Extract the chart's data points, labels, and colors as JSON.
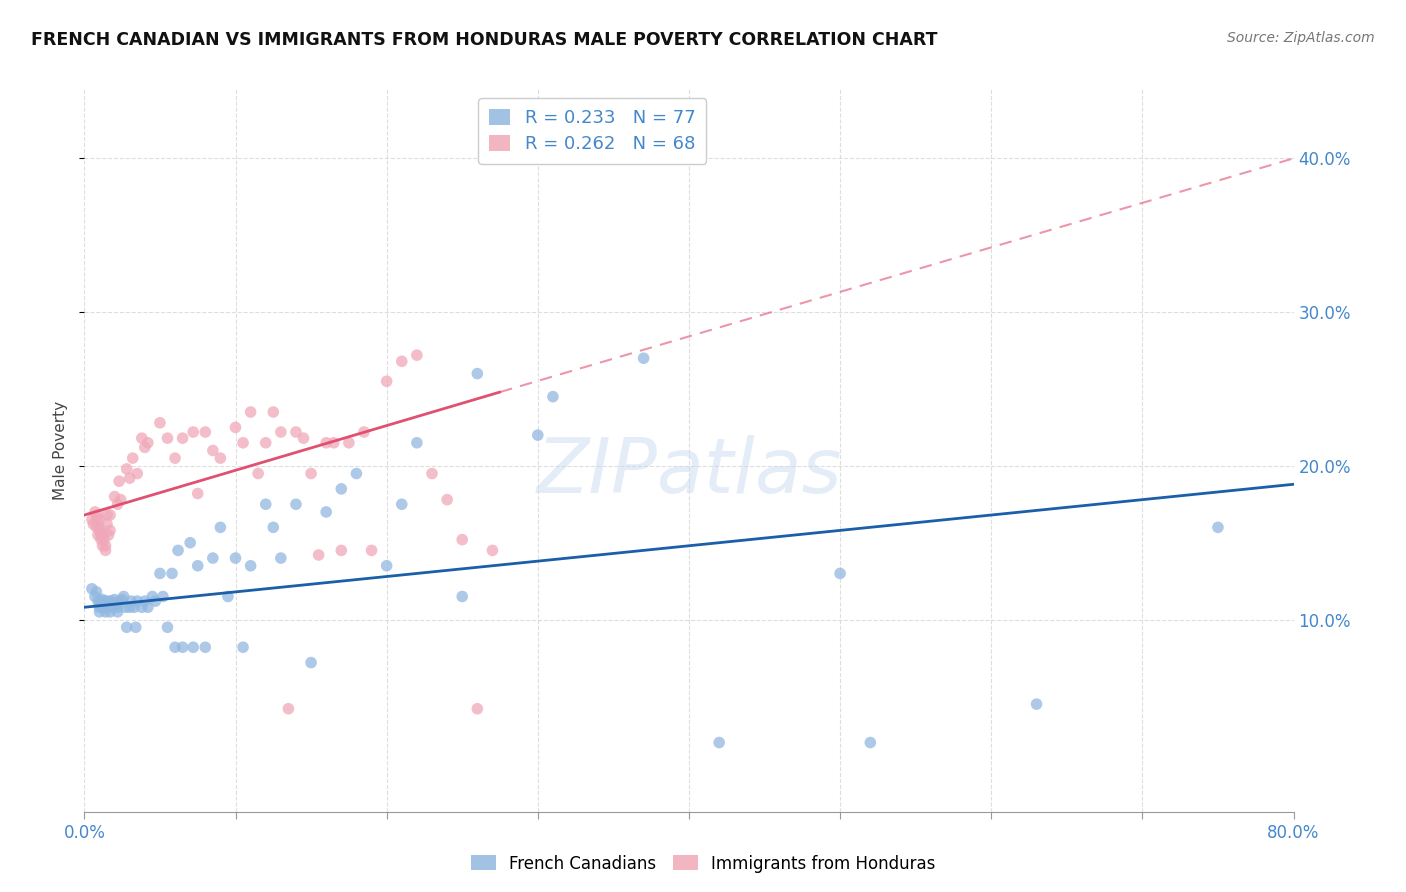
{
  "title": "FRENCH CANADIAN VS IMMIGRANTS FROM HONDURAS MALE POVERTY CORRELATION CHART",
  "source": "Source: ZipAtlas.com",
  "ylabel": "Male Poverty",
  "right_yticks": [
    "40.0%",
    "30.0%",
    "20.0%",
    "10.0%"
  ],
  "right_ytick_vals": [
    0.4,
    0.3,
    0.2,
    0.1
  ],
  "xlim": [
    0.0,
    0.8
  ],
  "ylim": [
    -0.025,
    0.445
  ],
  "legend_line1": "R = 0.233   N = 77",
  "legend_line2": "R = 0.262   N = 68",
  "series1_color": "#92b8e0",
  "series2_color": "#f0a8b8",
  "trendline1_color": "#1a5fa8",
  "trendline2_color": "#e05070",
  "watermark": "ZIPatlas",
  "french_canadians_x": [
    0.005,
    0.007,
    0.008,
    0.009,
    0.01,
    0.01,
    0.01,
    0.011,
    0.012,
    0.012,
    0.013,
    0.014,
    0.014,
    0.015,
    0.015,
    0.016,
    0.017,
    0.017,
    0.018,
    0.019,
    0.02,
    0.021,
    0.022,
    0.022,
    0.023,
    0.025,
    0.026,
    0.027,
    0.028,
    0.03,
    0.031,
    0.033,
    0.034,
    0.035,
    0.038,
    0.04,
    0.042,
    0.045,
    0.047,
    0.05,
    0.052,
    0.055,
    0.058,
    0.06,
    0.062,
    0.065,
    0.07,
    0.072,
    0.075,
    0.08,
    0.085,
    0.09,
    0.095,
    0.1,
    0.105,
    0.11,
    0.12,
    0.125,
    0.13,
    0.14,
    0.15,
    0.16,
    0.17,
    0.18,
    0.2,
    0.21,
    0.22,
    0.25,
    0.26,
    0.3,
    0.31,
    0.37,
    0.42,
    0.5,
    0.52,
    0.63,
    0.75
  ],
  "french_canadians_y": [
    0.12,
    0.115,
    0.118,
    0.112,
    0.11,
    0.108,
    0.105,
    0.112,
    0.113,
    0.11,
    0.108,
    0.112,
    0.105,
    0.11,
    0.108,
    0.112,
    0.109,
    0.105,
    0.112,
    0.108,
    0.113,
    0.11,
    0.108,
    0.105,
    0.112,
    0.113,
    0.115,
    0.108,
    0.095,
    0.108,
    0.112,
    0.108,
    0.095,
    0.112,
    0.108,
    0.112,
    0.108,
    0.115,
    0.112,
    0.13,
    0.115,
    0.095,
    0.13,
    0.082,
    0.145,
    0.082,
    0.15,
    0.082,
    0.135,
    0.082,
    0.14,
    0.16,
    0.115,
    0.14,
    0.082,
    0.135,
    0.175,
    0.16,
    0.14,
    0.175,
    0.072,
    0.17,
    0.185,
    0.195,
    0.135,
    0.175,
    0.215,
    0.115,
    0.26,
    0.22,
    0.245,
    0.27,
    0.02,
    0.13,
    0.02,
    0.045,
    0.16
  ],
  "immigrants_honduras_x": [
    0.005,
    0.006,
    0.007,
    0.008,
    0.008,
    0.009,
    0.009,
    0.01,
    0.01,
    0.01,
    0.011,
    0.011,
    0.012,
    0.012,
    0.013,
    0.014,
    0.014,
    0.015,
    0.015,
    0.016,
    0.017,
    0.017,
    0.02,
    0.022,
    0.023,
    0.024,
    0.028,
    0.03,
    0.032,
    0.035,
    0.038,
    0.04,
    0.042,
    0.05,
    0.055,
    0.06,
    0.065,
    0.072,
    0.075,
    0.08,
    0.085,
    0.09,
    0.1,
    0.105,
    0.11,
    0.115,
    0.12,
    0.125,
    0.13,
    0.135,
    0.14,
    0.145,
    0.15,
    0.155,
    0.16,
    0.165,
    0.17,
    0.175,
    0.185,
    0.19,
    0.2,
    0.21,
    0.22,
    0.23,
    0.24,
    0.25,
    0.26,
    0.27
  ],
  "immigrants_honduras_y": [
    0.165,
    0.162,
    0.17,
    0.165,
    0.16,
    0.168,
    0.155,
    0.165,
    0.16,
    0.158,
    0.155,
    0.152,
    0.155,
    0.148,
    0.152,
    0.148,
    0.145,
    0.168,
    0.162,
    0.155,
    0.168,
    0.158,
    0.18,
    0.175,
    0.19,
    0.178,
    0.198,
    0.192,
    0.205,
    0.195,
    0.218,
    0.212,
    0.215,
    0.228,
    0.218,
    0.205,
    0.218,
    0.222,
    0.182,
    0.222,
    0.21,
    0.205,
    0.225,
    0.215,
    0.235,
    0.195,
    0.215,
    0.235,
    0.222,
    0.042,
    0.222,
    0.218,
    0.195,
    0.142,
    0.215,
    0.215,
    0.145,
    0.215,
    0.222,
    0.145,
    0.255,
    0.268,
    0.272,
    0.195,
    0.178,
    0.152,
    0.042,
    0.145
  ],
  "trendline1_x0": 0.0,
  "trendline1_y0": 0.108,
  "trendline1_x1": 0.8,
  "trendline1_y1": 0.188,
  "trendline2_solid_x0": 0.0,
  "trendline2_solid_y0": 0.168,
  "trendline2_solid_x1": 0.275,
  "trendline2_solid_y1": 0.248,
  "trendline2_dash_x0": 0.275,
  "trendline2_dash_y0": 0.248,
  "trendline2_dash_x1": 0.8,
  "trendline2_dash_y1": 0.4
}
